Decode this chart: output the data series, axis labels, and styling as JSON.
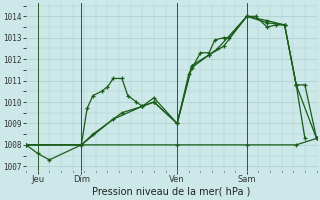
{
  "bg_color": "#cce8e8",
  "grid_color": "#aacccc",
  "line_color": "#1a5c1a",
  "marker_color": "#1a5c1a",
  "title": "Pression niveau de la mer( hPa )",
  "ylabel_values": [
    1007,
    1008,
    1009,
    1010,
    1011,
    1012,
    1013,
    1014
  ],
  "ylim": [
    1006.8,
    1014.6
  ],
  "xlim": [
    0,
    100
  ],
  "x_ticks": [
    4,
    19,
    52,
    76
  ],
  "x_tick_labels": [
    "Jeu",
    "Dim",
    "Ven",
    "Sam"
  ],
  "vlines": [
    4,
    19,
    52,
    76
  ],
  "series1_x": [
    0,
    4,
    8,
    19,
    21,
    23,
    26,
    28,
    30,
    33,
    35,
    38,
    40,
    44,
    52,
    56,
    60,
    63,
    65,
    68,
    70,
    76,
    79,
    83,
    86,
    89,
    93,
    96
  ],
  "series1_y": [
    1008.0,
    1007.6,
    1007.3,
    1008.0,
    1009.7,
    1010.3,
    1010.5,
    1010.7,
    1011.1,
    1011.1,
    1010.3,
    1010.0,
    1009.8,
    1010.2,
    1009.0,
    1011.3,
    1012.3,
    1012.3,
    1012.9,
    1013.0,
    1013.0,
    1014.0,
    1014.0,
    1013.5,
    1013.6,
    1013.6,
    1010.8,
    1008.3
  ],
  "series2_x": [
    0,
    52,
    76,
    93,
    100
  ],
  "series2_y": [
    1008.0,
    1008.0,
    1008.0,
    1008.0,
    1008.3
  ],
  "series3_x": [
    0,
    19,
    23,
    33,
    40,
    44,
    52,
    57,
    63,
    68,
    76,
    83,
    89,
    93,
    100
  ],
  "series3_y": [
    1008.0,
    1008.0,
    1008.5,
    1009.5,
    1009.8,
    1010.0,
    1009.0,
    1011.6,
    1012.2,
    1012.6,
    1014.0,
    1013.7,
    1013.6,
    1010.8,
    1008.3
  ],
  "series4_x": [
    0,
    19,
    30,
    40,
    44,
    52,
    57,
    63,
    66,
    76,
    83,
    89,
    93,
    96,
    100
  ],
  "series4_y": [
    1008.0,
    1008.0,
    1009.2,
    1009.8,
    1010.0,
    1009.0,
    1011.7,
    1012.2,
    1012.5,
    1014.0,
    1013.8,
    1013.6,
    1010.8,
    1010.8,
    1008.3
  ]
}
